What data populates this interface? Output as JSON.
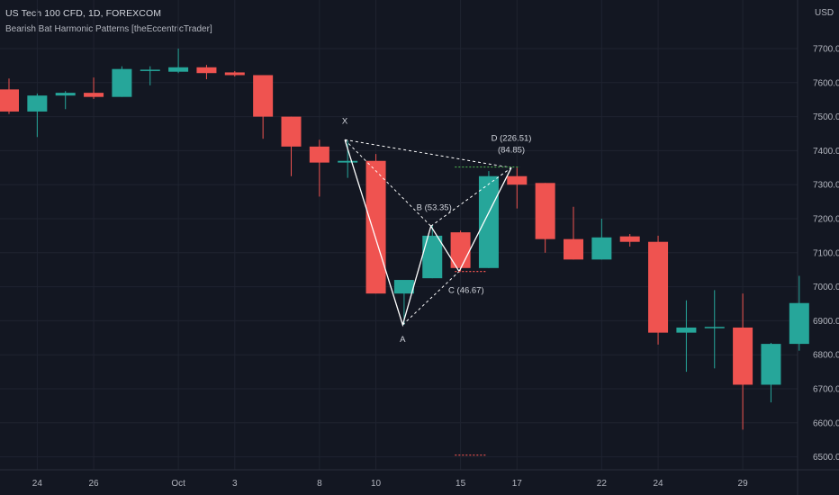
{
  "header": {
    "symbol_line": "US Tech 100 CFD, 1D, FOREXCOM",
    "indicator": "Bearish Bat Harmonic Patterns [theEccentricTrader]",
    "currency": "USD"
  },
  "colors": {
    "background": "#131722",
    "grid": "#1f2330",
    "up": "#26a69a",
    "down": "#ef5350",
    "axis_text": "#b2b5be",
    "pattern": "#ffffff"
  },
  "chart_data": {
    "type": "candlestick",
    "ylim": [
      6450,
      7760
    ],
    "yticks": [
      "7700.0",
      "7600.0",
      "7500.0",
      "7400.0",
      "7300.0",
      "7200.0",
      "7100.0",
      "7000.0",
      "6900.0",
      "6800.0",
      "6700.0",
      "6600.0",
      "6500.0"
    ],
    "xticks": [
      {
        "label": "24",
        "bar": 1
      },
      {
        "label": "26",
        "bar": 3
      },
      {
        "label": "Oct",
        "bar": 6
      },
      {
        "label": "3",
        "bar": 8
      },
      {
        "label": "8",
        "bar": 11
      },
      {
        "label": "10",
        "bar": 13
      },
      {
        "label": "15",
        "bar": 16
      },
      {
        "label": "17",
        "bar": 18
      },
      {
        "label": "22",
        "bar": 21
      },
      {
        "label": "24",
        "bar": 23
      },
      {
        "label": "29",
        "bar": 26
      }
    ],
    "candles": [
      {
        "o": 7580,
        "h": 7612,
        "l": 7508,
        "c": 7515
      },
      {
        "o": 7515,
        "h": 7568,
        "l": 7440,
        "c": 7562
      },
      {
        "o": 7562,
        "h": 7575,
        "l": 7522,
        "c": 7570
      },
      {
        "o": 7570,
        "h": 7615,
        "l": 7552,
        "c": 7558
      },
      {
        "o": 7558,
        "h": 7648,
        "l": 7558,
        "c": 7640
      },
      {
        "o": 7638,
        "h": 7648,
        "l": 7592,
        "c": 7638
      },
      {
        "o": 7632,
        "h": 7700,
        "l": 7628,
        "c": 7645
      },
      {
        "o": 7645,
        "h": 7652,
        "l": 7610,
        "c": 7628
      },
      {
        "o": 7630,
        "h": 7634,
        "l": 7618,
        "c": 7622
      },
      {
        "o": 7622,
        "h": 7622,
        "l": 7435,
        "c": 7500
      },
      {
        "o": 7500,
        "h": 7500,
        "l": 7325,
        "c": 7412
      },
      {
        "o": 7412,
        "h": 7432,
        "l": 7265,
        "c": 7365
      },
      {
        "o": 7365,
        "h": 7430,
        "l": 7320,
        "c": 7370
      },
      {
        "o": 7370,
        "h": 7390,
        "l": 6980,
        "c": 6980
      },
      {
        "o": 6980,
        "h": 7010,
        "l": 6888,
        "c": 7020
      },
      {
        "o": 7025,
        "h": 7180,
        "l": 7025,
        "c": 7150
      },
      {
        "o": 7160,
        "h": 7165,
        "l": 7045,
        "c": 7055
      },
      {
        "o": 7055,
        "h": 7340,
        "l": 7055,
        "c": 7325
      },
      {
        "o": 7325,
        "h": 7350,
        "l": 7230,
        "c": 7300
      },
      {
        "o": 7305,
        "h": 7305,
        "l": 7100,
        "c": 7140
      },
      {
        "o": 7140,
        "h": 7235,
        "l": 7080,
        "c": 7080
      },
      {
        "o": 7080,
        "h": 7200,
        "l": 7080,
        "c": 7145
      },
      {
        "o": 7148,
        "h": 7155,
        "l": 7118,
        "c": 7132
      },
      {
        "o": 7132,
        "h": 7150,
        "l": 6830,
        "c": 6865
      },
      {
        "o": 6865,
        "h": 6960,
        "l": 6750,
        "c": 6880
      },
      {
        "o": 6880,
        "h": 6990,
        "l": 6760,
        "c": 6882
      },
      {
        "o": 6880,
        "h": 6980,
        "l": 6580,
        "c": 6712
      },
      {
        "o": 6712,
        "h": 6835,
        "l": 6660,
        "c": 6832
      },
      {
        "o": 6832,
        "h": 7032,
        "l": 6812,
        "c": 6952
      }
    ],
    "pattern": {
      "name": "Bearish Bat",
      "points": [
        {
          "bar": 11.9,
          "price": 7432,
          "label": "X"
        },
        {
          "bar": 13.95,
          "price": 6888,
          "label": "A"
        },
        {
          "bar": 14.95,
          "price": 7178,
          "label": "B (53.35)"
        },
        {
          "bar": 15.95,
          "price": 7045,
          "label": "C (46.67)"
        },
        {
          "bar": 17.8,
          "price": 7350,
          "label": "D (226.51)",
          "label2": "(84.85)"
        }
      ],
      "levels": [
        {
          "price": 7352,
          "from_bar": 15.8,
          "to_bar": 18.1,
          "color": "#4caf50"
        },
        {
          "price": 7045,
          "from_bar": 15.8,
          "to_bar": 16.9,
          "color": "#ef5350"
        },
        {
          "price": 6505,
          "from_bar": 15.8,
          "to_bar": 16.9,
          "color": "#ef5350"
        }
      ]
    }
  }
}
